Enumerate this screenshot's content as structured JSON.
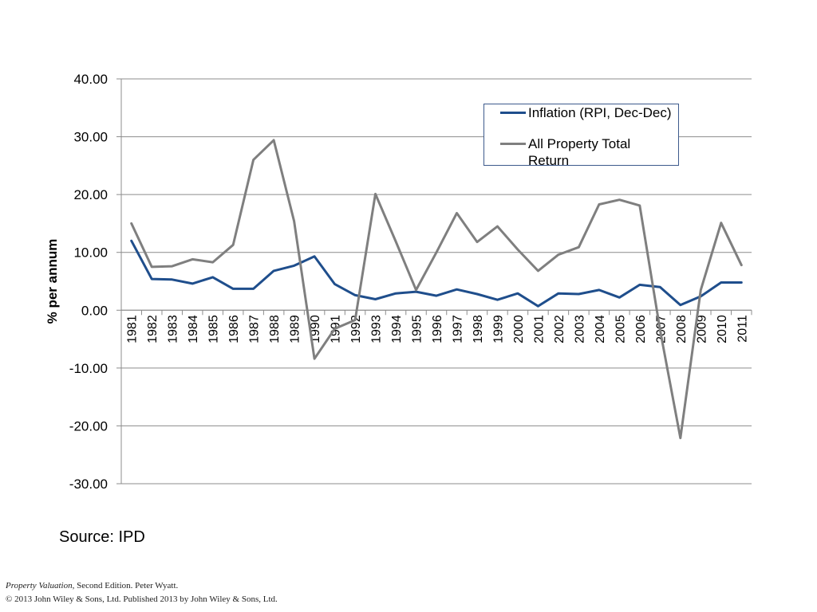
{
  "chart_data": {
    "type": "line",
    "title": "",
    "xlabel": "",
    "ylabel": "% per annum",
    "ylim": [
      -30,
      40
    ],
    "yticks": [
      "40.00",
      "30.00",
      "20.00",
      "10.00",
      "0.00",
      "-10.00",
      "-20.00",
      "-30.00"
    ],
    "grid": true,
    "legend_position": "top-right",
    "categories": [
      "1981",
      "1982",
      "1983",
      "1984",
      "1985",
      "1986",
      "1987",
      "1988",
      "1989",
      "1990",
      "1991",
      "1992",
      "1993",
      "1994",
      "1995",
      "1996",
      "1997",
      "1998",
      "1999",
      "2000",
      "2001",
      "2002",
      "2003",
      "2004",
      "2005",
      "2006",
      "2007",
      "2008",
      "2009",
      "2010",
      "2011"
    ],
    "series": [
      {
        "name": "Inflation (RPI, Dec-Dec)",
        "color": "#1f4e8c",
        "values": [
          12.0,
          5.4,
          5.3,
          4.6,
          5.7,
          3.7,
          3.7,
          6.8,
          7.7,
          9.3,
          4.5,
          2.6,
          1.9,
          2.9,
          3.2,
          2.5,
          3.6,
          2.8,
          1.8,
          2.9,
          0.7,
          2.9,
          2.8,
          3.5,
          2.2,
          4.4,
          4.0,
          0.9,
          2.4,
          4.8,
          4.8
        ]
      },
      {
        "name": "All Property Total Return",
        "color": "#7f7f7f",
        "values": [
          15.0,
          7.5,
          7.6,
          8.8,
          8.3,
          11.3,
          26.0,
          29.4,
          15.4,
          -8.4,
          -3.2,
          -1.7,
          20.1,
          11.9,
          3.5,
          10.0,
          16.8,
          11.8,
          14.5,
          10.5,
          6.8,
          9.6,
          10.9,
          18.3,
          19.1,
          18.1,
          -3.4,
          -22.1,
          3.5,
          15.1,
          7.8
        ]
      }
    ]
  },
  "source_text": "Source: IPD",
  "footer": {
    "book_title": "Property Valuation",
    "line1_rest": ", Second Edition. Peter Wyatt.",
    "line2": "© 2013 John Wiley & Sons, Ltd. Published 2013 by John Wiley & Sons, Ltd."
  }
}
